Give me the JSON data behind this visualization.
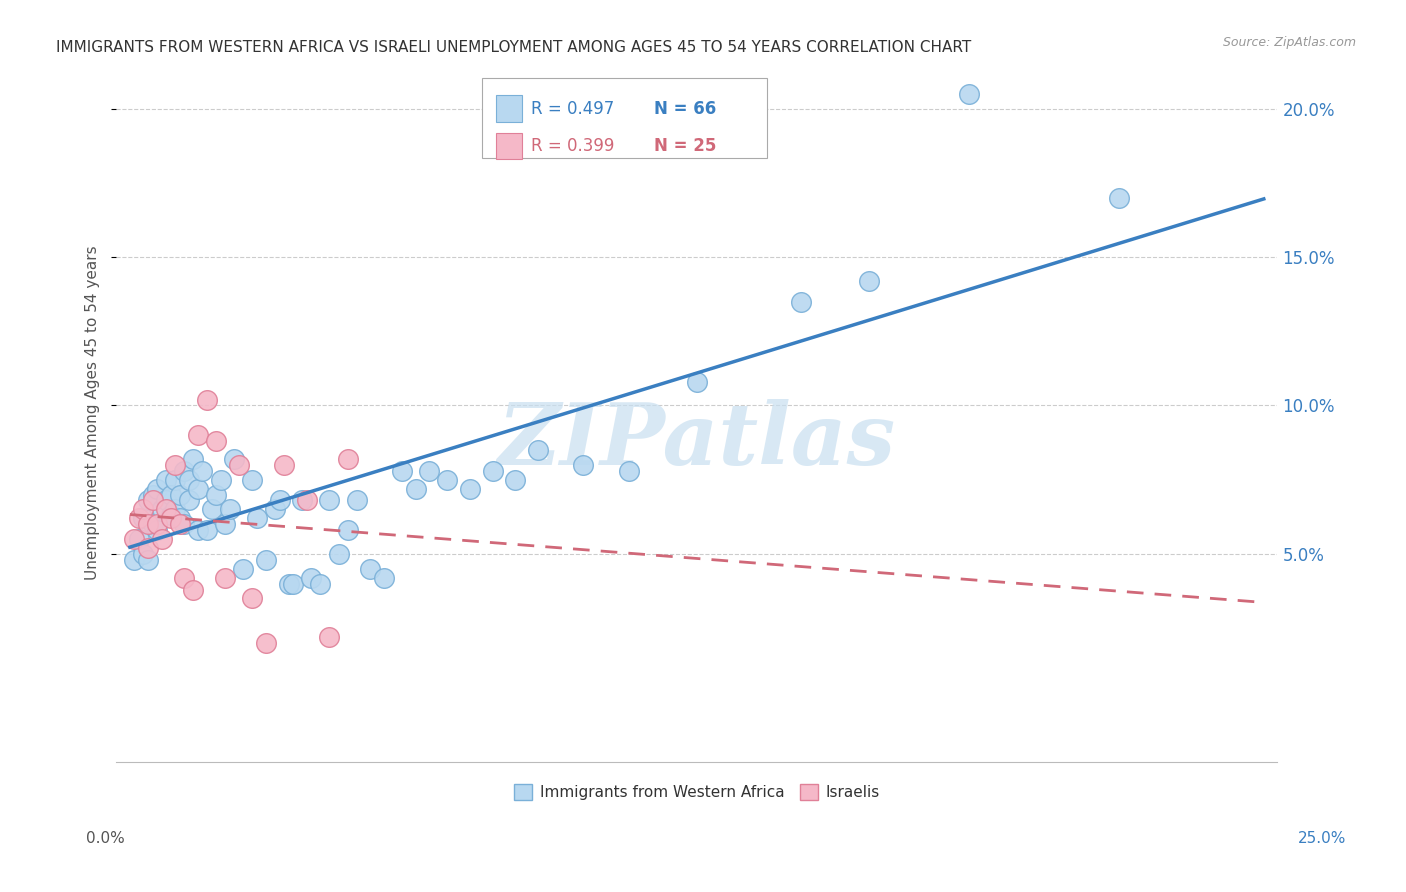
{
  "title": "IMMIGRANTS FROM WESTERN AFRICA VS ISRAELI UNEMPLOYMENT AMONG AGES 45 TO 54 YEARS CORRELATION CHART",
  "source": "Source: ZipAtlas.com",
  "ylabel_label": "Unemployment Among Ages 45 to 54 years",
  "legend_label_blue": "Immigrants from Western Africa",
  "legend_label_pink": "Israelis",
  "legend_r1_text": "R = 0.497",
  "legend_n1_text": "N = 66",
  "legend_r2_text": "R = 0.399",
  "legend_n2_text": "N = 25",
  "blue_color_fill": "#b8d8f0",
  "blue_color_edge": "#7ab0d8",
  "pink_color_fill": "#f5b8c8",
  "pink_color_edge": "#e08098",
  "blue_line_color": "#3a7fc1",
  "pink_line_color": "#d06878",
  "watermark_text": "ZIPatlas",
  "watermark_color": "#c8dff0",
  "xlim": [
    0.0,
    0.25
  ],
  "ylim": [
    -0.02,
    0.215
  ],
  "yticks": [
    0.05,
    0.1,
    0.15,
    0.2
  ],
  "ytick_labels": [
    "5.0%",
    "10.0%",
    "15.0%",
    "20.0%"
  ],
  "xtick_labels_bottom": [
    "0.0%",
    "25.0%"
  ],
  "blue_x": [
    0.001,
    0.002,
    0.003,
    0.003,
    0.004,
    0.004,
    0.005,
    0.005,
    0.006,
    0.006,
    0.007,
    0.008,
    0.008,
    0.009,
    0.009,
    0.01,
    0.01,
    0.011,
    0.011,
    0.012,
    0.012,
    0.013,
    0.013,
    0.014,
    0.015,
    0.015,
    0.016,
    0.017,
    0.018,
    0.019,
    0.02,
    0.021,
    0.022,
    0.023,
    0.025,
    0.027,
    0.028,
    0.03,
    0.032,
    0.033,
    0.035,
    0.036,
    0.038,
    0.04,
    0.042,
    0.044,
    0.046,
    0.048,
    0.05,
    0.053,
    0.056,
    0.06,
    0.063,
    0.066,
    0.07,
    0.075,
    0.08,
    0.085,
    0.09,
    0.1,
    0.11,
    0.125,
    0.148,
    0.163,
    0.185,
    0.218
  ],
  "blue_y": [
    0.048,
    0.055,
    0.05,
    0.062,
    0.048,
    0.068,
    0.06,
    0.07,
    0.058,
    0.072,
    0.065,
    0.068,
    0.075,
    0.063,
    0.07,
    0.065,
    0.075,
    0.07,
    0.062,
    0.078,
    0.06,
    0.075,
    0.068,
    0.082,
    0.058,
    0.072,
    0.078,
    0.058,
    0.065,
    0.07,
    0.075,
    0.06,
    0.065,
    0.082,
    0.045,
    0.075,
    0.062,
    0.048,
    0.065,
    0.068,
    0.04,
    0.04,
    0.068,
    0.042,
    0.04,
    0.068,
    0.05,
    0.058,
    0.068,
    0.045,
    0.042,
    0.078,
    0.072,
    0.078,
    0.075,
    0.072,
    0.078,
    0.075,
    0.085,
    0.08,
    0.078,
    0.108,
    0.135,
    0.142,
    0.205,
    0.17
  ],
  "pink_x": [
    0.001,
    0.002,
    0.003,
    0.004,
    0.004,
    0.005,
    0.006,
    0.007,
    0.008,
    0.009,
    0.01,
    0.011,
    0.012,
    0.014,
    0.015,
    0.017,
    0.019,
    0.021,
    0.024,
    0.027,
    0.03,
    0.034,
    0.039,
    0.044,
    0.048
  ],
  "pink_y": [
    0.055,
    0.062,
    0.065,
    0.052,
    0.06,
    0.068,
    0.06,
    0.055,
    0.065,
    0.062,
    0.08,
    0.06,
    0.042,
    0.038,
    0.09,
    0.102,
    0.088,
    0.042,
    0.08,
    0.035,
    0.02,
    0.08,
    0.068,
    0.022,
    0.082
  ]
}
